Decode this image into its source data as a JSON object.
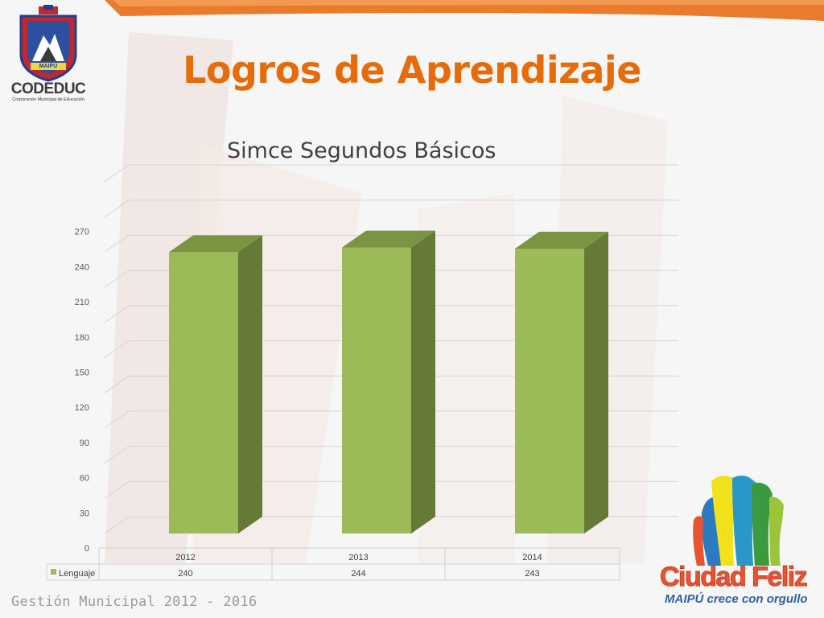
{
  "header": {
    "title": "Logros de Aprendizaje",
    "logo": {
      "name": "CODEDUC",
      "subtitle": "Corporación Municipal de Educación",
      "crest_text": "MAIPÚ",
      "icon": "crest-icon"
    }
  },
  "footer": {
    "text": "Gestión Municipal 2012 - 2016"
  },
  "brand": {
    "name": "Ciudad Feliz",
    "tagline": "MAIPÚ crece con orgullo",
    "icon": "rainbow-stripes-icon"
  },
  "colors": {
    "accent": "#e46c0a",
    "bar_front": "#9bbb59",
    "bar_side": "#647a36",
    "bar_top": "#7a9442",
    "cf_red": "#e8542e",
    "cf_blue": "#2f5fa8"
  },
  "chart_data": {
    "type": "bar",
    "title": "Simce Segundos Básicos",
    "categories": [
      "2012",
      "2013",
      "2014"
    ],
    "series": [
      {
        "name": "Lenguaje",
        "values": [
          240,
          244,
          243
        ]
      }
    ],
    "ylim": [
      0,
      270
    ],
    "yticks": [
      0,
      30,
      60,
      90,
      120,
      150,
      180,
      210,
      240,
      270
    ],
    "grid": true,
    "style": "3d-column",
    "data_table": true
  }
}
